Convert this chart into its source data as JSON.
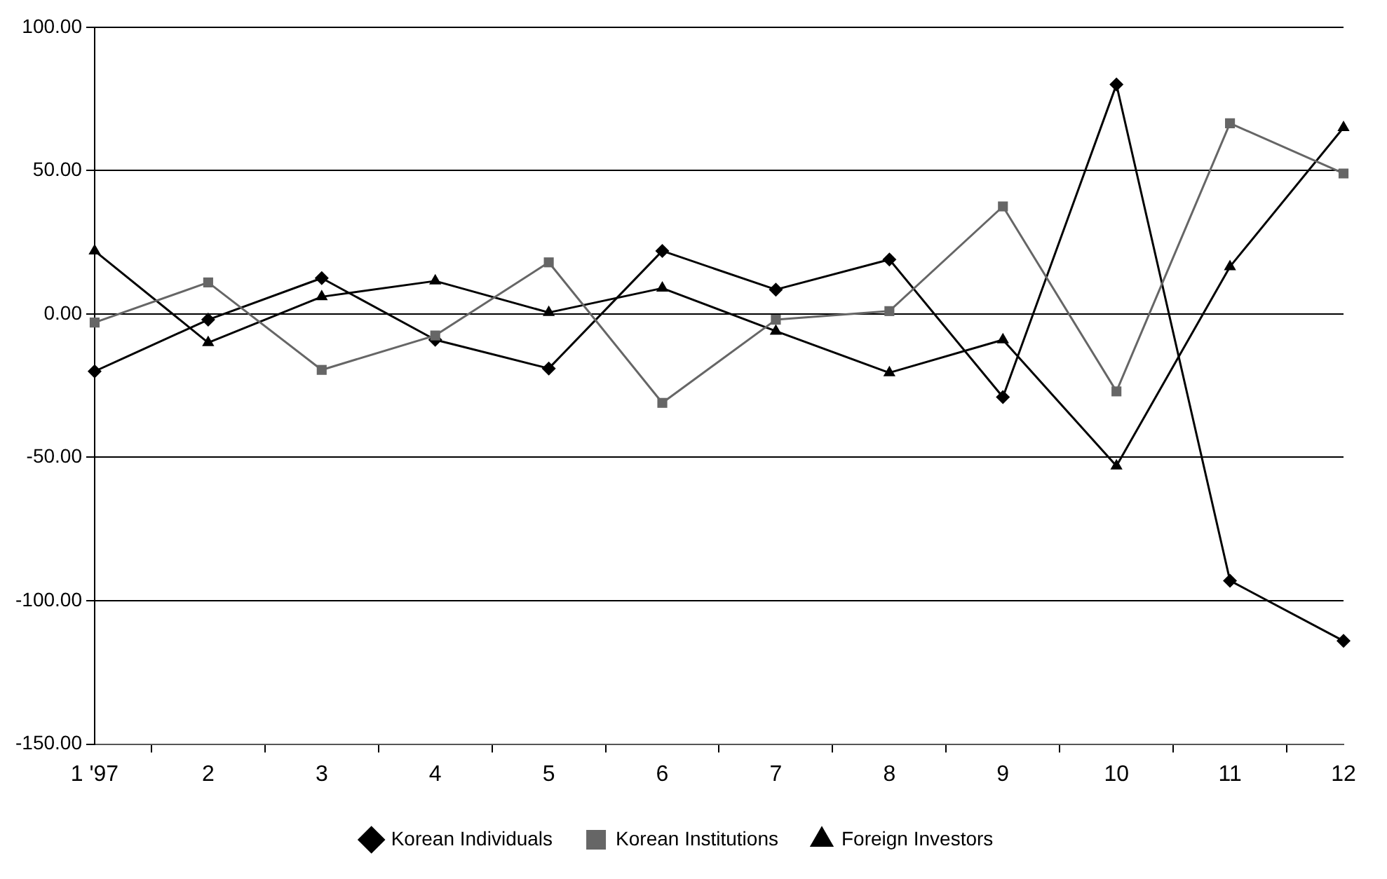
{
  "chart_data": {
    "type": "line",
    "categories": [
      "1 '97",
      "2",
      "3",
      "4",
      "5",
      "6",
      "7",
      "8",
      "9",
      "10",
      "11",
      "12"
    ],
    "series": [
      {
        "name": "Korean Individuals",
        "color": "#000000",
        "marker": "diamond",
        "values": [
          -20,
          -2,
          12.5,
          -9,
          -19,
          22,
          8.5,
          19,
          -29,
          80,
          -93,
          -114
        ]
      },
      {
        "name": "Korean Institutions",
        "color": "#666666",
        "marker": "square",
        "values": [
          -3,
          11,
          -19.5,
          -7.5,
          18,
          -31,
          -2,
          1,
          37.5,
          -27,
          66.5,
          49
        ]
      },
      {
        "name": "Foreign Investors",
        "color": "#000000",
        "marker": "triangle",
        "values": [
          22,
          -10,
          6,
          11.5,
          0.5,
          9,
          -6,
          -20.5,
          -9,
          -53,
          16.5,
          65
        ]
      }
    ],
    "ylim": [
      -150,
      100
    ],
    "yticks": [
      {
        "value": -150,
        "label": "-150.00"
      },
      {
        "value": -100,
        "label": "-100.00"
      },
      {
        "value": -50,
        "label": "-50.00"
      },
      {
        "value": 0,
        "label": "0.00"
      },
      {
        "value": 50,
        "label": "50.00"
      },
      {
        "value": 100,
        "label": "100.00"
      }
    ],
    "grid": "y",
    "legend": "bottom",
    "line_style": "solid"
  }
}
